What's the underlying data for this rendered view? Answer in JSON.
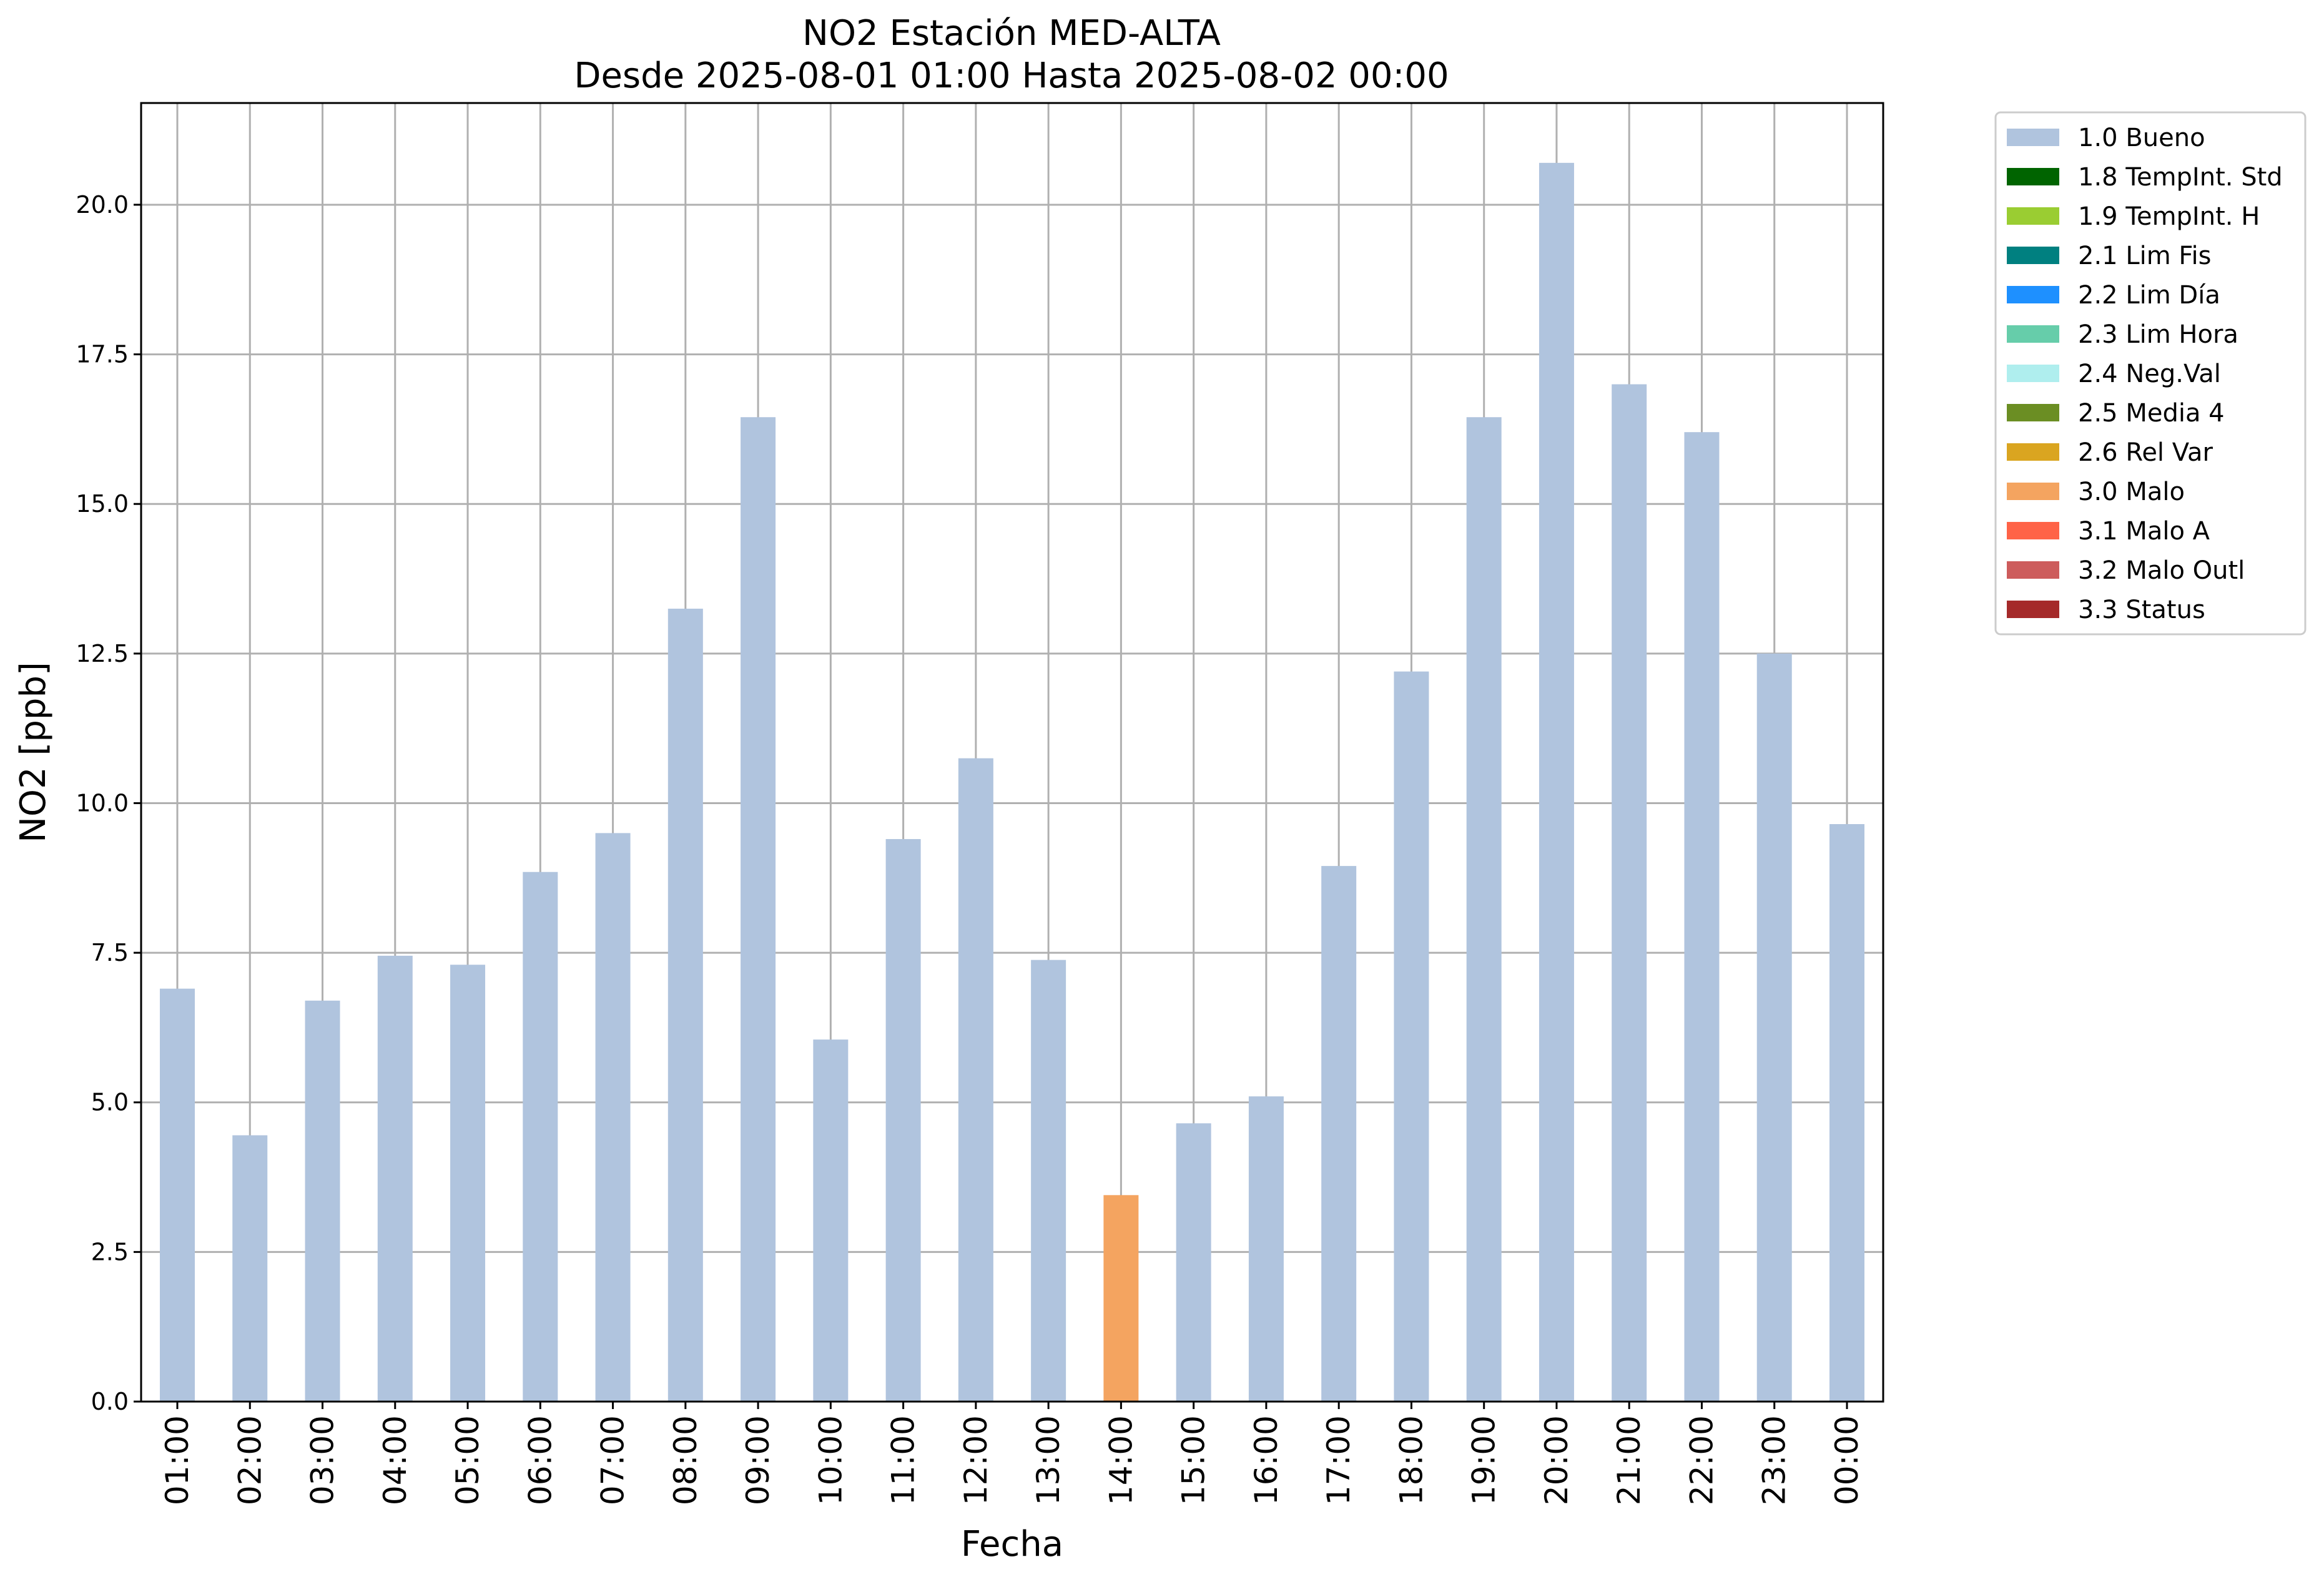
{
  "chart_data": {
    "type": "bar",
    "title": "NO2 Estación MED-ALTA",
    "subtitle": "Desde 2025-08-01 01:00 Hasta 2025-08-02 00:00",
    "xlabel": "Fecha",
    "ylabel": "NO2 [ppb]",
    "ylim": [
      0,
      21.7
    ],
    "yticks": [
      "0.0",
      "2.5",
      "5.0",
      "7.5",
      "10.0",
      "12.5",
      "15.0",
      "17.5",
      "20.0"
    ],
    "ytick_values": [
      0,
      2.5,
      5,
      7.5,
      10,
      12.5,
      15,
      17.5,
      20
    ],
    "grid": true,
    "legend_position": "outside-top-right",
    "categories": [
      "01:00",
      "02:00",
      "03:00",
      "04:00",
      "05:00",
      "06:00",
      "07:00",
      "08:00",
      "09:00",
      "10:00",
      "11:00",
      "12:00",
      "13:00",
      "14:00",
      "15:00",
      "16:00",
      "17:00",
      "18:00",
      "19:00",
      "20:00",
      "21:00",
      "22:00",
      "23:00",
      "00:00"
    ],
    "values": [
      6.9,
      4.45,
      6.7,
      7.45,
      7.3,
      8.85,
      9.5,
      13.25,
      16.45,
      6.05,
      9.4,
      10.75,
      7.38,
      3.45,
      4.65,
      5.1,
      8.95,
      12.2,
      16.45,
      20.7,
      17.0,
      16.2,
      12.5,
      9.65
    ],
    "flags": [
      "1.0 Bueno",
      "1.0 Bueno",
      "1.0 Bueno",
      "1.0 Bueno",
      "1.0 Bueno",
      "1.0 Bueno",
      "1.0 Bueno",
      "1.0 Bueno",
      "1.0 Bueno",
      "1.0 Bueno",
      "1.0 Bueno",
      "1.0 Bueno",
      "1.0 Bueno",
      "3.0 Malo",
      "1.0 Bueno",
      "1.0 Bueno",
      "1.0 Bueno",
      "1.0 Bueno",
      "1.0 Bueno",
      "1.0 Bueno",
      "1.0 Bueno",
      "1.0 Bueno",
      "1.0 Bueno",
      "1.0 Bueno"
    ],
    "legend": [
      {
        "label": "1.0 Bueno",
        "color": "#b0c4de"
      },
      {
        "label": "1.8 TempInt. Std",
        "color": "#006400"
      },
      {
        "label": "1.9 TempInt. H",
        "color": "#9acd32"
      },
      {
        "label": "2.1 Lim Fis",
        "color": "#008080"
      },
      {
        "label": "2.2 Lim Día",
        "color": "#1e90ff"
      },
      {
        "label": "2.3 Lim Hora",
        "color": "#66cdaa"
      },
      {
        "label": "2.4 Neg.Val",
        "color": "#afeeee"
      },
      {
        "label": "2.5 Media 4",
        "color": "#6b8e23"
      },
      {
        "label": "2.6 Rel Var",
        "color": "#daa520"
      },
      {
        "label": "3.0 Malo",
        "color": "#f4a460"
      },
      {
        "label": "3.1 Malo A",
        "color": "#ff6347"
      },
      {
        "label": "3.2 Malo Outl",
        "color": "#cd5c5c"
      },
      {
        "label": "3.3 Status",
        "color": "#a52a2a"
      }
    ]
  }
}
